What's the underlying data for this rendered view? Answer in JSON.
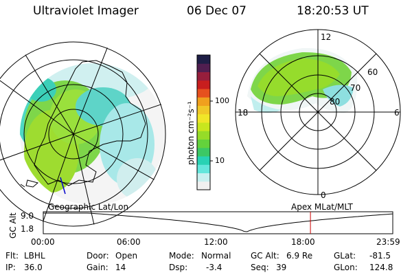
{
  "header": {
    "instrument": "Ultraviolet Imager",
    "date": "06 Dec 07",
    "time": "18:20:53 UT"
  },
  "left_map": {
    "label": "Geographic Lat/Lon"
  },
  "right_map": {
    "label": "Apex MLat/MLT",
    "mlt_labels": {
      "top": "12",
      "left": "18",
      "right": "6",
      "bottom": "0"
    },
    "lat_labels": [
      "60",
      "70",
      "80"
    ]
  },
  "colorbar": {
    "unit_label": "photon cm⁻²s⁻¹",
    "ticks": [
      "100",
      "10"
    ],
    "colors": [
      "#f0f0f0",
      "#c8f0f0",
      "#64e6dc",
      "#28d2b4",
      "#3cc864",
      "#64d23c",
      "#96dc28",
      "#c8e61e",
      "#f0e628",
      "#f0c828",
      "#f0a01e",
      "#e6501e",
      "#c81e1e",
      "#961e3c",
      "#501e50",
      "#1e1e46"
    ]
  },
  "altitude_plot": {
    "ylabel": "GC Alt",
    "yticks": [
      "9.0",
      "1.8"
    ],
    "time_ticks": [
      "00:00",
      "06:00",
      "12:00",
      "18:00",
      "23:59"
    ],
    "current_time_fraction": 0.7645
  },
  "info": {
    "flt_label": "Flt:",
    "flt_value": "LBHL",
    "ip_label": "IP:",
    "ip_value": "36.0",
    "door_label": "Door:",
    "door_value": "Open",
    "gain_label": "Gain:",
    "gain_value": "14",
    "mode_label": "Mode:",
    "mode_value": "Normal",
    "dsp_label": "Dsp:",
    "dsp_value": "-3.4",
    "gcalt_label": "GC Alt:",
    "gcalt_value": "6.9 Re",
    "seq_label": "Seq:",
    "seq_value": "39",
    "glat_label": "GLat:",
    "glat_value": "-81.5",
    "glon_label": "GLon:",
    "glon_value": "124.8"
  }
}
